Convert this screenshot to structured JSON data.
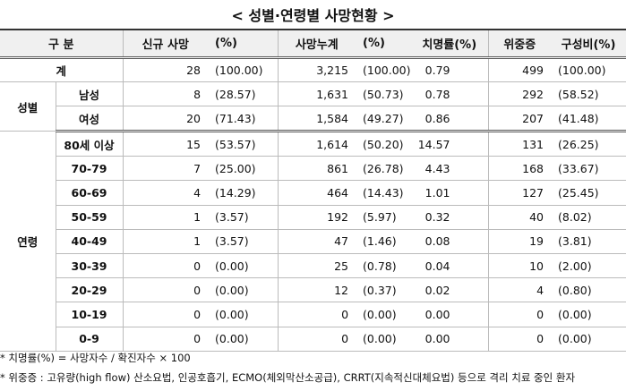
{
  "title": "< 성별·연령별 사망현황 >",
  "table": {
    "header": [
      "구 분",
      "신규 사망",
      "(%)",
      "사망누계",
      "(%)",
      "치명률(%)",
      "위중증",
      "구성비(%)"
    ],
    "total": {
      "label": "계",
      "values": [
        "28",
        "(100.00)",
        "3,215",
        "(100.00)",
        "0.79",
        "499",
        "(100.00)"
      ]
    },
    "groups": [
      {
        "name": "성별",
        "rows": [
          {
            "label": "남성",
            "values": [
              "8",
              "(28.57)",
              "1,631",
              "(50.73)",
              "0.78",
              "292",
              "(58.52)"
            ]
          },
          {
            "label": "여성",
            "values": [
              "20",
              "(71.43)",
              "1,584",
              "(49.27)",
              "0.86",
              "207",
              "(41.48)"
            ]
          }
        ]
      },
      {
        "name": "연령",
        "rows": [
          {
            "label": "80세 이상",
            "values": [
              "15",
              "(53.57)",
              "1,614",
              "(50.20)",
              "14.57",
              "131",
              "(26.25)"
            ]
          },
          {
            "label": "70-79",
            "values": [
              "7",
              "(25.00)",
              "861",
              "(26.78)",
              "4.43",
              "168",
              "(33.67)"
            ]
          },
          {
            "label": "60-69",
            "values": [
              "4",
              "(14.29)",
              "464",
              "(14.43)",
              "1.01",
              "127",
              "(25.45)"
            ]
          },
          {
            "label": "50-59",
            "values": [
              "1",
              "(3.57)",
              "192",
              "(5.97)",
              "0.32",
              "40",
              "(8.02)"
            ]
          },
          {
            "label": "40-49",
            "values": [
              "1",
              "(3.57)",
              "47",
              "(1.46)",
              "0.08",
              "19",
              "(3.81)"
            ]
          },
          {
            "label": "30-39",
            "values": [
              "0",
              "(0.00)",
              "25",
              "(0.78)",
              "0.04",
              "10",
              "(2.00)"
            ]
          },
          {
            "label": "20-29",
            "values": [
              "0",
              "(0.00)",
              "12",
              "(0.37)",
              "0.02",
              "4",
              "(0.80)"
            ]
          },
          {
            "label": "10-19",
            "values": [
              "0",
              "(0.00)",
              "0",
              "(0.00)",
              "0.00",
              "0",
              "(0.00)"
            ]
          },
          {
            "label": "0-9",
            "values": [
              "0",
              "(0.00)",
              "0",
              "(0.00)",
              "0.00",
              "0",
              "(0.00)"
            ]
          }
        ]
      }
    ]
  },
  "notes": [
    "* 치명률(%) = 사망자수 / 확진자수 × 100",
    "* 위중증 : 고유량(high flow) 산소요법, 인공호흡기, ECMO(체외막산소공급), CRRT(지속적신대체요법) 등으로 격리 치료 중인 환자"
  ]
}
